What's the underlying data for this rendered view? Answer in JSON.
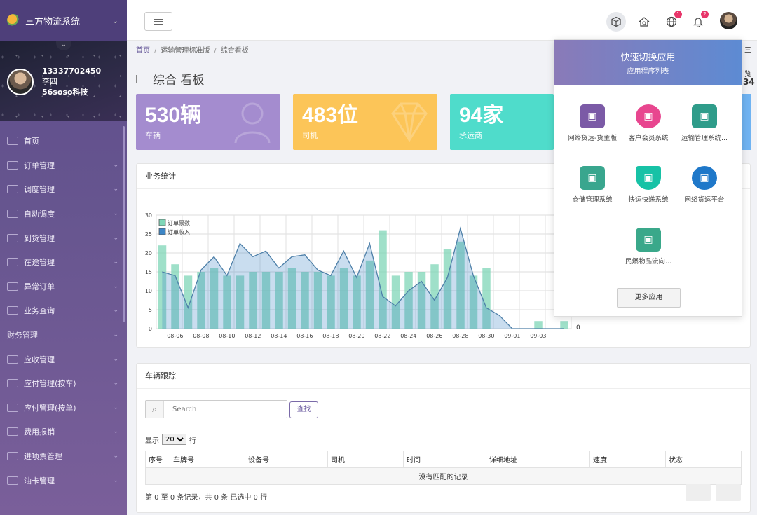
{
  "sidebar": {
    "brand": "三方物流系统",
    "user": {
      "phone": "13337702450",
      "name": "李四",
      "company": "56soso科技"
    },
    "menu": [
      {
        "label": "首页",
        "arrow": false
      },
      {
        "label": "订单管理",
        "arrow": true
      },
      {
        "label": "调度管理",
        "arrow": true
      },
      {
        "label": "自动调度",
        "arrow": true
      },
      {
        "label": "到货管理",
        "arrow": true
      },
      {
        "label": "在途管理",
        "arrow": true
      },
      {
        "label": "异常订单",
        "arrow": true
      },
      {
        "label": "业务查询",
        "arrow": true
      },
      {
        "label": "财务管理",
        "arrow": true,
        "section": true
      },
      {
        "label": "应收管理",
        "arrow": true
      },
      {
        "label": "应付管理(按车)",
        "arrow": true
      },
      {
        "label": "应付管理(按单)",
        "arrow": true
      },
      {
        "label": "费用报销",
        "arrow": true
      },
      {
        "label": "进项票管理",
        "arrow": true
      },
      {
        "label": "油卡管理",
        "arrow": true
      }
    ]
  },
  "topbar": {
    "badges": {
      "globe": "1",
      "bell": "2"
    },
    "icons": [
      "cube-icon",
      "home-settings-icon",
      "globe-icon",
      "bell-icon"
    ]
  },
  "breadcrumb": [
    "首页",
    "运输管理标准版",
    "综合看板"
  ],
  "page_title": "综合 看板",
  "stats": [
    {
      "value": "530辆",
      "label": "车辆",
      "color": "#a48ccf"
    },
    {
      "value": "483位",
      "label": "司机",
      "color": "#fcc558"
    },
    {
      "value": "94家",
      "label": "承运商",
      "color": "#4fdccb"
    }
  ],
  "cutoff_text": {
    "top_right_1": "三",
    "top_right_2": "览",
    "top_right_3": "34",
    "chart_right": "0"
  },
  "business_panel": {
    "title": "业务统计"
  },
  "chart_data": {
    "type": "bar",
    "title": "",
    "ylim": [
      0,
      30
    ],
    "yticks": [
      "0",
      "5",
      "10",
      "15",
      "20",
      "25",
      "30"
    ],
    "xticks": [
      "08-06",
      "08-08",
      "08-10",
      "08-12",
      "08-14",
      "08-16",
      "08-18",
      "08-20",
      "08-22",
      "08-24",
      "08-26",
      "08-28",
      "08-30",
      "09-01",
      "09-03"
    ],
    "series": [
      {
        "name": "订单票数",
        "type": "bar",
        "color": "#7fd6b7",
        "values": [
          22,
          17,
          14,
          15,
          16,
          14,
          14,
          15,
          15,
          15,
          16,
          15,
          15,
          14,
          16,
          14,
          18,
          26,
          14,
          15,
          15,
          17,
          21,
          23,
          14,
          16,
          0,
          0,
          0,
          2,
          0,
          2
        ]
      },
      {
        "name": "订单收入",
        "type": "area",
        "color": "#3d86c6",
        "values": [
          15,
          14,
          5.5,
          15.5,
          19,
          14,
          22.5,
          19,
          20.5,
          16,
          19,
          19.5,
          15.5,
          14,
          20.5,
          13.5,
          22.5,
          8.5,
          6,
          10,
          12.5,
          7.5,
          13.5,
          26.5,
          14,
          5.5,
          3.5,
          0,
          0,
          0,
          0,
          0
        ]
      }
    ]
  },
  "vehicle_panel": {
    "title": "车辆跟踪",
    "search_placeholder": "Search",
    "find_button": "查找",
    "length_prefix": "显示",
    "length_value": "20",
    "length_suffix": "行",
    "columns": [
      "序号",
      "车牌号",
      "设备号",
      "司机",
      "时间",
      "详细地址",
      "速度",
      "状态"
    ],
    "empty_text": "没有匹配的记录",
    "info": "第 0 至 0 条记录，共 0 条   已选中 0 行"
  },
  "app_switcher": {
    "title": "快速切换应用",
    "subtitle": "应用程序列表",
    "apps": [
      {
        "label": "网络货运-货主版",
        "color": "#7b5aa6",
        "icon": "truck-icon"
      },
      {
        "label": "客户会员系统",
        "color": "#e8468f",
        "icon": "member-icon"
      },
      {
        "label": "运输管理系统...",
        "color": "#2f9c8a",
        "icon": "delivery-truck-icon"
      },
      {
        "label": "仓储管理系统",
        "color": "#39a68e",
        "icon": "warehouse-icon"
      },
      {
        "label": "快运快递系统",
        "color": "#17c2a6",
        "icon": "shield-icon"
      },
      {
        "label": "网络货运平台",
        "color": "#1f78c9",
        "icon": "lifebuoy-icon"
      },
      {
        "label": "民爆物品流向...",
        "color": "#3aa88a",
        "icon": "cargo-truck-icon"
      }
    ],
    "more_button": "更多应用"
  }
}
